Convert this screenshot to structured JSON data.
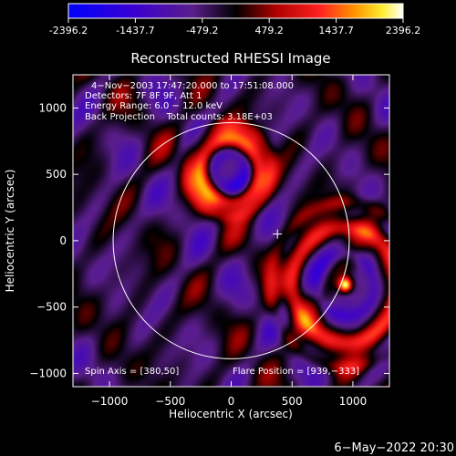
{
  "colorbar": {
    "tick_labels": [
      "-2396.2",
      "-1437.7",
      "-479.2",
      "479.2",
      "1437.7",
      "2396.2"
    ],
    "min": -2396.2,
    "max": 2396.2
  },
  "chart_data": {
    "type": "heatmap",
    "title": "Reconstructed RHESSI Image",
    "xlabel": "Heliocentric X (arcsec)",
    "ylabel": "Heliocentric Y (arcsec)",
    "xlim": [
      -1300,
      1300
    ],
    "ylim": [
      -1100,
      1250
    ],
    "xticks": [
      -1000,
      -500,
      0,
      500,
      1000
    ],
    "yticks": [
      -1000,
      -500,
      0,
      500,
      1000
    ],
    "xtick_labels": [
      "−1000",
      "−500",
      "0",
      "500",
      "1000"
    ],
    "ytick_labels": [
      "−1000",
      "−500",
      "0",
      "500",
      "1000"
    ],
    "info_lines": [
      "4−Nov−2003 17:47:20.000 to 17:51:08.000",
      "Detectors: 7F 8F 9F, Att 1",
      "Energy Range: 6.0 − 12.0 keV",
      "Back Projection    Total counts: 3.18E+03"
    ],
    "spin_axis_label": "Spin Axis = [380,50]",
    "flare_position_label": "Flare Position = [939,−333]",
    "spin_axis": [
      380,
      50
    ],
    "flare_position": [
      939,
      -333
    ],
    "solar_disk_radius_arcsec": 970,
    "colormap": "blue-purple-black-red-yellow-white",
    "rings": [
      {
        "center": [
          -15,
          530
        ],
        "radius": 240,
        "amplitude": 1500,
        "note": "ring around upper source"
      },
      {
        "center": [
          939,
          -333
        ],
        "radius": 430,
        "amplitude": 1300,
        "note": "ring around flare"
      }
    ],
    "sources": [
      {
        "center": [
          939,
          -333
        ],
        "amplitude": 2396.2,
        "note": "flare peak"
      }
    ]
  },
  "timestamp": "6−May−2022 20:30"
}
